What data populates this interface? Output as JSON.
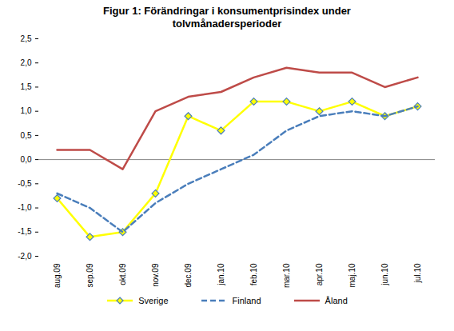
{
  "chart_data": {
    "type": "line",
    "title": "Figur 1: Förändringar i konsumentprisindex under tolvmånadersperioder",
    "categories": [
      "aug.09",
      "sep.09",
      "okt.09",
      "nov.09",
      "dec.09",
      "jan.10",
      "feb.10",
      "mar.10",
      "apr.10",
      "maj.10",
      "jun.10",
      "jul.10"
    ],
    "series": [
      {
        "name": "Sverige",
        "color": "#ffff00",
        "marker": "diamond",
        "line_style": "solid",
        "values": [
          -0.8,
          -1.6,
          -1.5,
          -0.7,
          0.9,
          0.6,
          1.2,
          1.2,
          1.0,
          1.2,
          0.9,
          1.1
        ]
      },
      {
        "name": "Finland",
        "color": "#4a7ebb",
        "marker": "none",
        "line_style": "dashed",
        "values": [
          -0.7,
          -1.0,
          -1.5,
          -0.9,
          -0.5,
          -0.2,
          0.1,
          0.6,
          0.9,
          1.0,
          0.9,
          1.1
        ]
      },
      {
        "name": "Åland",
        "color": "#be4b48",
        "marker": "none",
        "line_style": "solid",
        "values": [
          0.2,
          0.2,
          -0.2,
          1.0,
          1.3,
          1.4,
          1.7,
          1.9,
          1.8,
          1.8,
          1.5,
          1.7
        ]
      }
    ],
    "ylim": [
      -2,
      2.5
    ],
    "yticks": [
      {
        "value": -2,
        "label": "-2,0"
      },
      {
        "value": -1.5,
        "label": "-1,5"
      },
      {
        "value": -1,
        "label": "-1,0"
      },
      {
        "value": -0.5,
        "label": "-0,5"
      },
      {
        "value": 0,
        "label": "0,0"
      },
      {
        "value": 0.5,
        "label": "0,5"
      },
      {
        "value": 1,
        "label": "1,0"
      },
      {
        "value": 1.5,
        "label": "1,5"
      },
      {
        "value": 2,
        "label": "2,0"
      },
      {
        "value": 2.5,
        "label": "2,5"
      }
    ],
    "grid": false,
    "legend": "bottom"
  }
}
